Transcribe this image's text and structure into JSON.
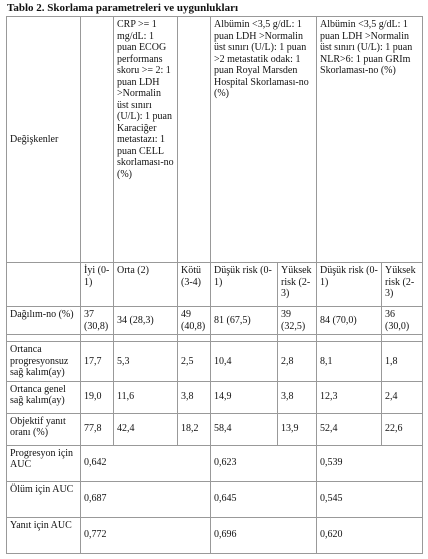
{
  "title": "Tablo 2. Skorlama parametreleri ve uygunlukları",
  "table": {
    "label_header": "Değişkenler",
    "groups": [
      "CRP >= 1 mg/dL: 1 puan ECOG performans skoru >= 2: 1 puan LDH >Normalin üst sınırı (U/L): 1 puan Karaciğer metastazı: 1 puan CELL skorlaması-no (%)",
      "Albümin <3,5 g/dL: 1 puan LDH >Normalin üst sınırı (U/L): 1 puan >2 metastatik odak: 1 puan Royal Marsden Hospital Skorlaması-no (%)",
      "Albümin <3,5 g/dL: 1 puan LDH >Normalin üst sınırı (U/L): 1 puan NLR>6: 1 puan GRIm Skorlaması-no (%)"
    ],
    "subheader": [
      "İyi (0-1)",
      "Orta (2)",
      "Kötü (3-4)",
      "Düşük risk (0-1)",
      "Yüksek risk (2-3)",
      "Düşük risk (0-1)",
      "Yüksek risk (2-3)"
    ],
    "rows": [
      [
        "Dağılım-no (%)",
        "37 (30,8)",
        "34 (28,3)",
        "49 (40,8)",
        "81 (67,5)",
        "39 (32,5)",
        "84 (70,0)",
        "36 (30,0)"
      ],
      [
        "Ortanca progresyonsuz sağ kalım(ay)",
        "17,7",
        "5,3",
        "2,5",
        "10,4",
        "2,8",
        "8,1",
        "1,8"
      ],
      [
        "Ortanca genel sağ kalım(ay)",
        "19,0",
        "11,6",
        "3,8",
        "14,9",
        "3,8",
        "12,3",
        "2,4"
      ],
      [
        "Objektif yanıt oranı (%)",
        "77,8",
        "42,4",
        "18,2",
        "58,4",
        "13,9",
        "52,4",
        "22,6"
      ],
      [
        "Progresyon için AUC",
        "0,642",
        "0,623",
        "0,539"
      ],
      [
        "Ölüm için AUC",
        "0,687",
        "0,645",
        "0,545"
      ],
      [
        "Yanıt için AUC",
        "0,772",
        "0,696",
        "0,620"
      ]
    ]
  }
}
